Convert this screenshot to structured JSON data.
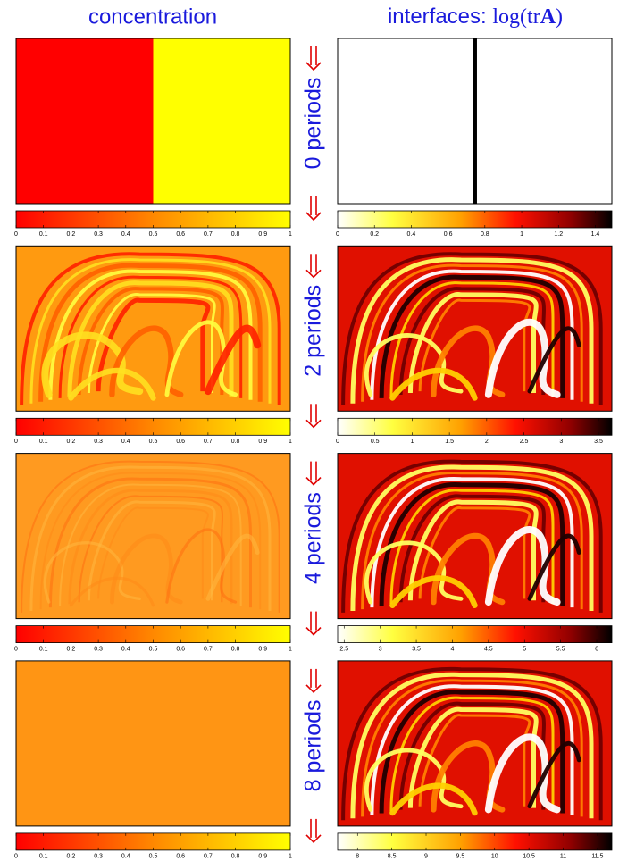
{
  "headers": {
    "concentration": "concentration",
    "interfaces": "interfaces:",
    "formula_head": "log(tr",
    "formula_matrix": "A",
    "formula_tail": ")"
  },
  "rows": [
    {
      "label": "0 periods",
      "concentration_colorbar": {
        "lim": [
          0,
          1
        ],
        "ticks": [
          0,
          0.1,
          0.2,
          0.3,
          0.4,
          0.5,
          0.6,
          0.7,
          0.8,
          0.9,
          1
        ]
      },
      "interfaces_colorbar": {
        "lim": [
          0,
          1.49
        ],
        "ticks": [
          0,
          0.2,
          0.4,
          0.6,
          0.8,
          1,
          1.2,
          1.4
        ]
      }
    },
    {
      "label": "2 periods",
      "concentration_colorbar": {
        "lim": [
          0,
          1
        ],
        "ticks": [
          0,
          0.1,
          0.2,
          0.3,
          0.4,
          0.5,
          0.6,
          0.7,
          0.8,
          0.9,
          1
        ]
      },
      "interfaces_colorbar": {
        "lim": [
          0,
          3.68
        ],
        "ticks": [
          0,
          0.5,
          1,
          1.5,
          2,
          2.5,
          3,
          3.5
        ]
      }
    },
    {
      "label": "4 periods",
      "concentration_colorbar": {
        "lim": [
          0,
          1
        ],
        "ticks": [
          0,
          0.1,
          0.2,
          0.3,
          0.4,
          0.5,
          0.6,
          0.7,
          0.8,
          0.9,
          1
        ]
      },
      "interfaces_colorbar": {
        "lim": [
          2.41,
          6.21
        ],
        "ticks": [
          2.5,
          3,
          3.5,
          4,
          4.5,
          5,
          5.5,
          6
        ]
      }
    },
    {
      "label": "8 periods",
      "concentration_colorbar": {
        "lim": [
          0,
          1
        ],
        "ticks": [
          0,
          0.1,
          0.2,
          0.3,
          0.4,
          0.5,
          0.6,
          0.7,
          0.8,
          0.9,
          1
        ]
      },
      "interfaces_colorbar": {
        "lim": [
          7.71,
          11.71
        ],
        "ticks": [
          8,
          8.5,
          9,
          9.5,
          10,
          10.5,
          11,
          11.5
        ]
      }
    }
  ]
}
